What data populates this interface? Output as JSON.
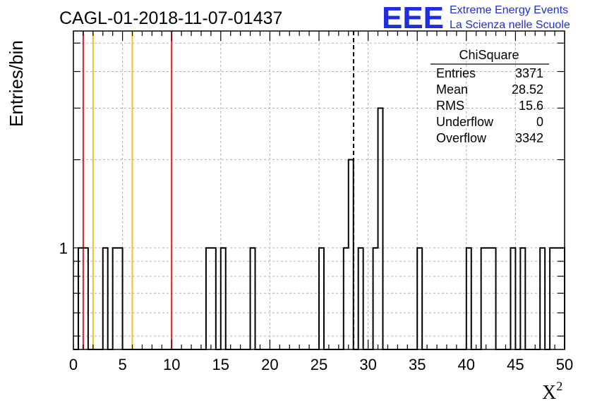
{
  "header": {
    "title": "CAGL-01-2018-11-07-01437",
    "logo_text": "EEE",
    "logo_line1": "Extreme Energy Events",
    "logo_line2": "La Scienza nelle Scuole"
  },
  "stats": {
    "title": "ChiSquare",
    "rows": [
      {
        "label": "Entries",
        "value": "3371"
      },
      {
        "label": "Mean",
        "value": "28.52"
      },
      {
        "label": "RMS",
        "value": "15.6"
      },
      {
        "label": "Underflow",
        "value": "0"
      },
      {
        "label": "Overflow",
        "value": "3342"
      }
    ]
  },
  "chart_data": {
    "type": "bar",
    "histogram": "step",
    "xlabel": "X²",
    "ylabel": "Entries/bin",
    "xlim": [
      0,
      50
    ],
    "ylim": [
      0.45,
      5.5
    ],
    "yscale": "log",
    "bin_width": 0.5,
    "x_ticks": [
      0,
      5,
      10,
      15,
      20,
      25,
      30,
      35,
      40,
      45,
      50
    ],
    "y_tick_labels": [
      1
    ],
    "grid": true,
    "bins": [
      {
        "x": 0.5,
        "value": 1
      },
      {
        "x": 1.0,
        "value": 1
      },
      {
        "x": 3.0,
        "value": 1
      },
      {
        "x": 4.0,
        "value": 1
      },
      {
        "x": 4.5,
        "value": 1
      },
      {
        "x": 13.5,
        "value": 1
      },
      {
        "x": 14.0,
        "value": 1
      },
      {
        "x": 15.0,
        "value": 1
      },
      {
        "x": 18.0,
        "value": 1
      },
      {
        "x": 25.0,
        "value": 1
      },
      {
        "x": 27.5,
        "value": 1
      },
      {
        "x": 28.0,
        "value": 2
      },
      {
        "x": 29.0,
        "value": 1
      },
      {
        "x": 30.5,
        "value": 1
      },
      {
        "x": 31.0,
        "value": 3
      },
      {
        "x": 35.0,
        "value": 1
      },
      {
        "x": 40.0,
        "value": 1
      },
      {
        "x": 41.5,
        "value": 1
      },
      {
        "x": 42.0,
        "value": 1
      },
      {
        "x": 42.5,
        "value": 1
      },
      {
        "x": 44.5,
        "value": 1
      },
      {
        "x": 45.5,
        "value": 1
      },
      {
        "x": 47.5,
        "value": 1
      },
      {
        "x": 48.5,
        "value": 1
      },
      {
        "x": 49.0,
        "value": 1
      },
      {
        "x": 49.5,
        "value": 1
      }
    ],
    "vertical_lines": [
      {
        "x": 1,
        "color": "#e02020",
        "style": "solid"
      },
      {
        "x": 2,
        "color": "#f0c020",
        "style": "solid"
      },
      {
        "x": 6,
        "color": "#f0c020",
        "style": "solid"
      },
      {
        "x": 10,
        "color": "#e02020",
        "style": "solid"
      },
      {
        "x": 28.52,
        "color": "#000000",
        "style": "dashed"
      }
    ]
  }
}
